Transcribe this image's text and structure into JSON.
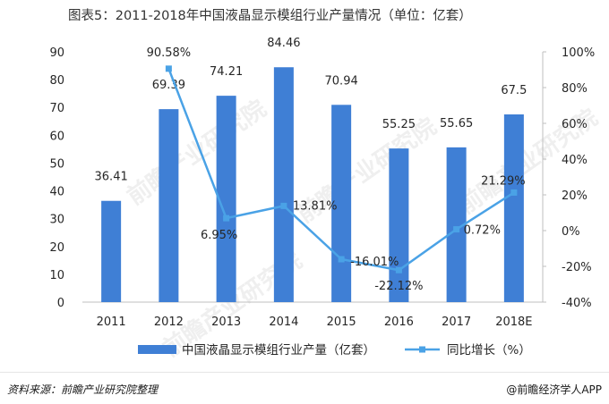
{
  "title": "图表5：2011-2018年中国液晶显示模组行业产量情况（单位：亿套）",
  "source": "资料来源：前瞻产业研究院整理",
  "brand": "@前瞻经济学人APP",
  "watermark": "前瞻产业研究院",
  "colors": {
    "bar": "#3f7fd5",
    "line": "#4aa2e6",
    "grid": "#e3e3e3",
    "axis": "#bfbfbf"
  },
  "chart_data": {
    "type": "bar",
    "categories": [
      "2011",
      "2012",
      "2013",
      "2014",
      "2015",
      "2016",
      "2017",
      "2018E"
    ],
    "series": [
      {
        "name": "中国液晶显示模组行业产量（亿套）",
        "type": "bar",
        "axis": "left",
        "values": [
          36.41,
          69.39,
          74.21,
          84.46,
          70.94,
          55.25,
          55.65,
          67.5
        ],
        "labels": [
          "36.41",
          "69.39",
          "74.21",
          "84.46",
          "70.94",
          "55.25",
          "55.65",
          "67.5"
        ]
      },
      {
        "name": "同比增长（%）",
        "type": "line",
        "axis": "right",
        "values": [
          null,
          90.58,
          6.95,
          13.81,
          -16.01,
          -22.12,
          0.72,
          21.29
        ],
        "labels": [
          "",
          "90.58%",
          "6.95%",
          "13.81%",
          "-16.01%",
          "-22.12%",
          "0.72%",
          "21.29%"
        ]
      }
    ],
    "y_left": {
      "range": [
        0,
        90
      ],
      "ticks": [
        "0",
        "10",
        "20",
        "30",
        "40",
        "50",
        "60",
        "70",
        "80",
        "90"
      ]
    },
    "y_right": {
      "range": [
        -40,
        100
      ],
      "ticks": [
        "-40%",
        "-20%",
        "0%",
        "20%",
        "40%",
        "60%",
        "80%",
        "100%"
      ]
    },
    "grid": false,
    "legend_position": "bottom"
  }
}
